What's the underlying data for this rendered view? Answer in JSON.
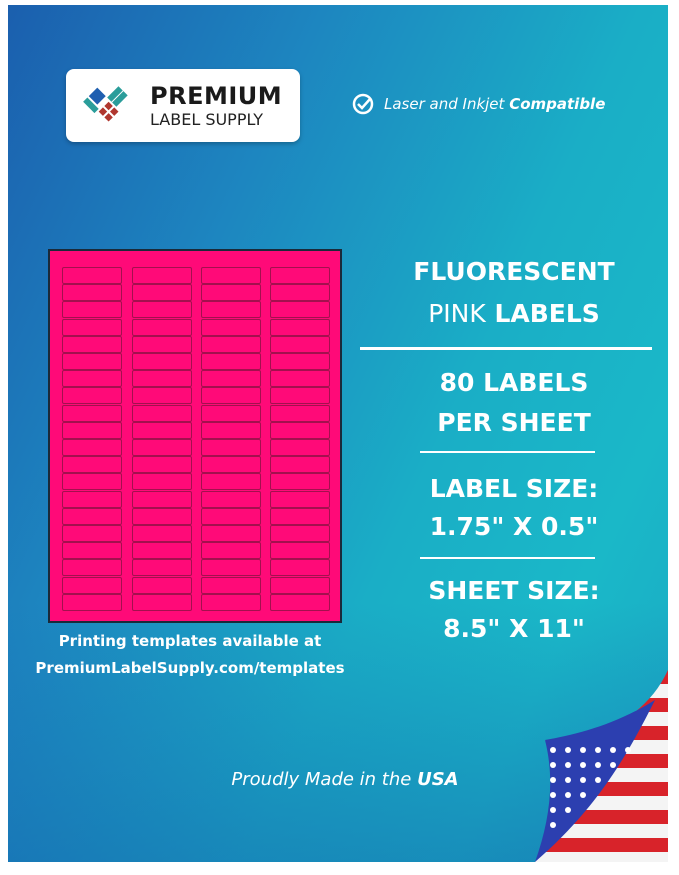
{
  "brand": {
    "line1": "PREMIUM",
    "line2": "LABEL SUPPLY",
    "colors": {
      "blue": "#1f5fb0",
      "teal": "#2a9d9a",
      "red": "#b0372f"
    }
  },
  "compatibility": {
    "icon": "check-circle-icon",
    "prefix": "Laser and Inkjet",
    "emphasis": "Compatible"
  },
  "product": {
    "line1": "FLUORESCENT",
    "color_word": "PINK",
    "line2_rest": "LABELS",
    "label_color": "#ff0a78"
  },
  "count": {
    "line1": "80 LABELS",
    "line2": "PER SHEET"
  },
  "label_size": {
    "heading": "LABEL SIZE:",
    "value": "1.75\" X 0.5\""
  },
  "sheet_size": {
    "heading": "SHEET SIZE:",
    "value": "8.5\" X 11\""
  },
  "templates": {
    "line1": "Printing templates available at",
    "line2": "PremiumLabelSupply.com/templates"
  },
  "origin": {
    "prefix": "Proudly Made in the",
    "emphasis": "USA",
    "icon": "us-flag-icon"
  }
}
